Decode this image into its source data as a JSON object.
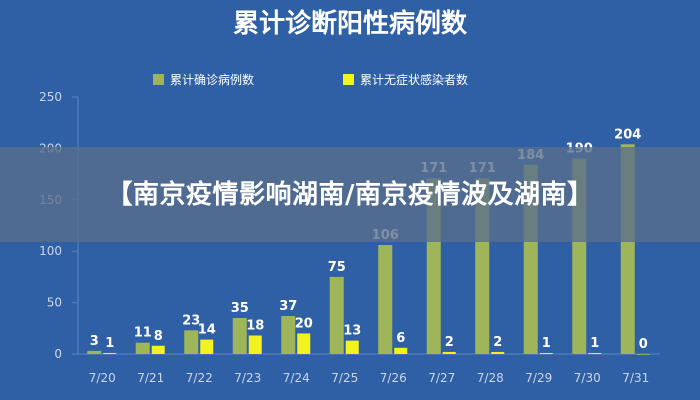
{
  "overlay": {
    "title": "【南京疫情影响湖南/南京疫情波及湖南】"
  },
  "colors": {
    "background": "#2f60a6",
    "series_confirmed": "#9fb55a",
    "series_asymptomatic": "#f2f21f",
    "text": "#ffffff",
    "axis_text": "#c9d6ea",
    "grid": "#5d82bd"
  },
  "chart_data": {
    "type": "bar",
    "title": "累计诊断阳性病例数",
    "xlabel": "",
    "ylabel": "",
    "ylim": [
      0,
      250
    ],
    "yticks": [
      0,
      50,
      100,
      150,
      200,
      250
    ],
    "categories": [
      "7/20",
      "7/21",
      "7/22",
      "7/23",
      "7/24",
      "7/25",
      "7/26",
      "7/27",
      "7/28",
      "7/29",
      "7/30",
      "7/31"
    ],
    "series": [
      {
        "name": "累计确诊病例数",
        "values": [
          3,
          11,
          23,
          35,
          37,
          75,
          106,
          171,
          171,
          184,
          190,
          204
        ]
      },
      {
        "name": "累计无症状感染者数",
        "values": [
          1,
          8,
          14,
          18,
          20,
          13,
          6,
          2,
          2,
          1,
          1,
          0
        ]
      }
    ],
    "legend_position": "top",
    "grid": false
  }
}
